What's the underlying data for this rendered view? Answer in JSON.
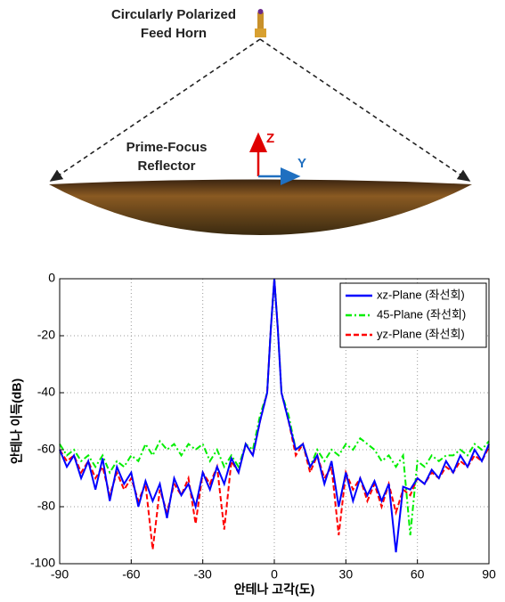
{
  "diagram": {
    "feed_label": [
      "Circularly Polarized",
      "Feed Horn"
    ],
    "reflector_label": [
      "Prime-Focus",
      "Reflector"
    ],
    "axis_z": "Z",
    "axis_y": "Y"
  },
  "chart_data": {
    "type": "line",
    "x_label": "안테나 고각(도)",
    "y_label": "안테나 이득(dB)",
    "x": [
      -90,
      -87,
      -84,
      -81,
      -78,
      -75,
      -72,
      -69,
      -66,
      -63,
      -60,
      -57,
      -54,
      -51,
      -48,
      -45,
      -42,
      -39,
      -36,
      -33,
      -30,
      -27,
      -24,
      -21,
      -18,
      -15,
      -12,
      -9,
      -6,
      -3,
      -1.5,
      0,
      1.5,
      3,
      6,
      9,
      12,
      15,
      18,
      21,
      24,
      27,
      30,
      33,
      36,
      39,
      42,
      45,
      48,
      51,
      54,
      57,
      60,
      63,
      66,
      69,
      72,
      75,
      78,
      81,
      84,
      87,
      90
    ],
    "series": [
      {
        "name": "xz-Plane (좌선회)",
        "color": "#0000ff",
        "dash": "solid",
        "values": [
          -60,
          -66,
          -62,
          -70,
          -64,
          -74,
          -63,
          -78,
          -66,
          -72,
          -68,
          -80,
          -71,
          -78,
          -72,
          -84,
          -70,
          -76,
          -72,
          -80,
          -68,
          -74,
          -66,
          -72,
          -63,
          -68,
          -58,
          -62,
          -50,
          -40,
          -18,
          0,
          -18,
          -40,
          -50,
          -60,
          -58,
          -66,
          -62,
          -72,
          -64,
          -80,
          -68,
          -78,
          -70,
          -76,
          -71,
          -78,
          -72,
          -96,
          -73,
          -74,
          -70,
          -72,
          -67,
          -70,
          -64,
          -68,
          -62,
          -66,
          -60,
          -64,
          -58
        ]
      },
      {
        "name": "45-Plane (좌선회)",
        "color": "#00ee00",
        "dash": "dashdot",
        "values": [
          -58,
          -62,
          -60,
          -64,
          -62,
          -66,
          -62,
          -68,
          -64,
          -66,
          -62,
          -64,
          -58,
          -62,
          -57,
          -60,
          -58,
          -62,
          -58,
          -60,
          -58,
          -64,
          -60,
          -66,
          -62,
          -66,
          -58,
          -60,
          -48,
          -40,
          -18,
          0,
          -18,
          -40,
          -48,
          -60,
          -58,
          -66,
          -60,
          -64,
          -60,
          -62,
          -58,
          -60,
          -56,
          -58,
          -60,
          -64,
          -62,
          -66,
          -62,
          -90,
          -64,
          -66,
          -62,
          -64,
          -62,
          -62,
          -60,
          -62,
          -58,
          -60,
          -57
        ]
      },
      {
        "name": "yz-Plane (좌선회)",
        "color": "#ff0000",
        "dash": "dashed",
        "values": [
          -60,
          -64,
          -62,
          -68,
          -64,
          -70,
          -66,
          -76,
          -68,
          -74,
          -70,
          -78,
          -72,
          -95,
          -74,
          -82,
          -72,
          -76,
          -70,
          -86,
          -68,
          -72,
          -66,
          -88,
          -64,
          -68,
          -58,
          -62,
          -50,
          -40,
          -18,
          0,
          -18,
          -40,
          -50,
          -62,
          -58,
          -68,
          -62,
          -70,
          -66,
          -90,
          -68,
          -74,
          -70,
          -78,
          -72,
          -80,
          -72,
          -82,
          -74,
          -76,
          -70,
          -72,
          -68,
          -70,
          -66,
          -68,
          -64,
          -66,
          -62,
          -64,
          -59
        ]
      }
    ],
    "xlim": [
      -90,
      90
    ],
    "xticks": [
      -90,
      -60,
      -30,
      0,
      30,
      60,
      90
    ],
    "ylim": [
      -100,
      0
    ],
    "yticks": [
      0,
      -20,
      -40,
      -60,
      -80,
      -100
    ],
    "grid": true,
    "legend": "upper right"
  }
}
